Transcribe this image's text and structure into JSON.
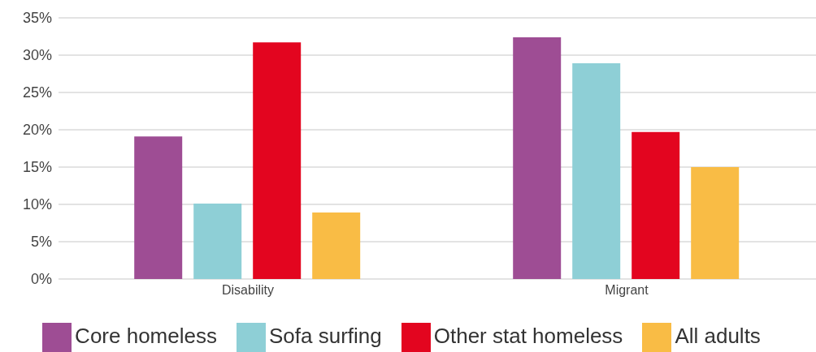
{
  "chart_data": {
    "type": "bar",
    "categories": [
      "Disability",
      "Migrant"
    ],
    "series": [
      {
        "name": "Core homeless",
        "color": "#9e4d94",
        "values": [
          19.1,
          32.4
        ]
      },
      {
        "name": "Sofa surfing",
        "color": "#8ecfd6",
        "values": [
          10.1,
          28.9
        ]
      },
      {
        "name": "Other stat homeless",
        "color": "#e3051f",
        "values": [
          31.7,
          19.7
        ]
      },
      {
        "name": "All adults",
        "color": "#f9bc45",
        "values": [
          8.9,
          15.0
        ]
      }
    ],
    "ylim": [
      0,
      35
    ],
    "yticks": [
      {
        "value": 0,
        "label": "0%"
      },
      {
        "value": 5,
        "label": "5%"
      },
      {
        "value": 10,
        "label": "10%"
      },
      {
        "value": 15,
        "label": "15%"
      },
      {
        "value": 20,
        "label": "20%"
      },
      {
        "value": 25,
        "label": "25%"
      },
      {
        "value": 30,
        "label": "30%"
      },
      {
        "value": 35,
        "label": "35%"
      }
    ],
    "grid": "y",
    "legend": "bottom"
  }
}
